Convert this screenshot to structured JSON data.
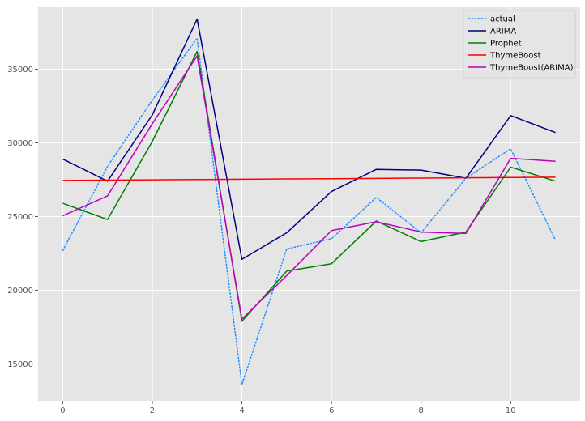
{
  "chart_data": {
    "type": "line",
    "title": "",
    "xlabel": "",
    "ylabel": "",
    "x": [
      0,
      1,
      2,
      3,
      4,
      5,
      6,
      7,
      8,
      9,
      10,
      11
    ],
    "xlim": [
      -0.55,
      11.55
    ],
    "ylim": [
      12500,
      39200
    ],
    "xticks": [
      0,
      2,
      4,
      6,
      8,
      10
    ],
    "yticks": [
      15000,
      20000,
      25000,
      30000,
      35000
    ],
    "grid": true,
    "legend_position": "top-right",
    "series": [
      {
        "name": "actual",
        "color": "#1f8fff",
        "style": "dotted",
        "values": [
          22700,
          28400,
          32900,
          37100,
          13600,
          22800,
          23500,
          26300,
          23900,
          27600,
          29600,
          23400
        ]
      },
      {
        "name": "ARIMA",
        "color": "#000080",
        "style": "solid",
        "values": [
          28900,
          27400,
          31900,
          38400,
          22100,
          23900,
          26700,
          28200,
          28150,
          27600,
          31850,
          30700
        ]
      },
      {
        "name": "Prophet",
        "color": "#008000",
        "style": "solid",
        "values": [
          25900,
          24800,
          30100,
          36200,
          17900,
          21300,
          21800,
          24700,
          23300,
          23950,
          28350,
          27400
        ]
      },
      {
        "name": "ThymeBoost",
        "color": "#ff0000",
        "style": "solid",
        "values": [
          27450,
          27470,
          27490,
          27510,
          27530,
          27550,
          27570,
          27590,
          27610,
          27630,
          27650,
          27670
        ]
      },
      {
        "name": "ThymeBoost(ARIMA)",
        "color": "#bf00bf",
        "style": "solid",
        "values": [
          25050,
          26400,
          31300,
          35900,
          18050,
          21000,
          24050,
          24650,
          23950,
          23850,
          28950,
          28750
        ]
      }
    ]
  }
}
